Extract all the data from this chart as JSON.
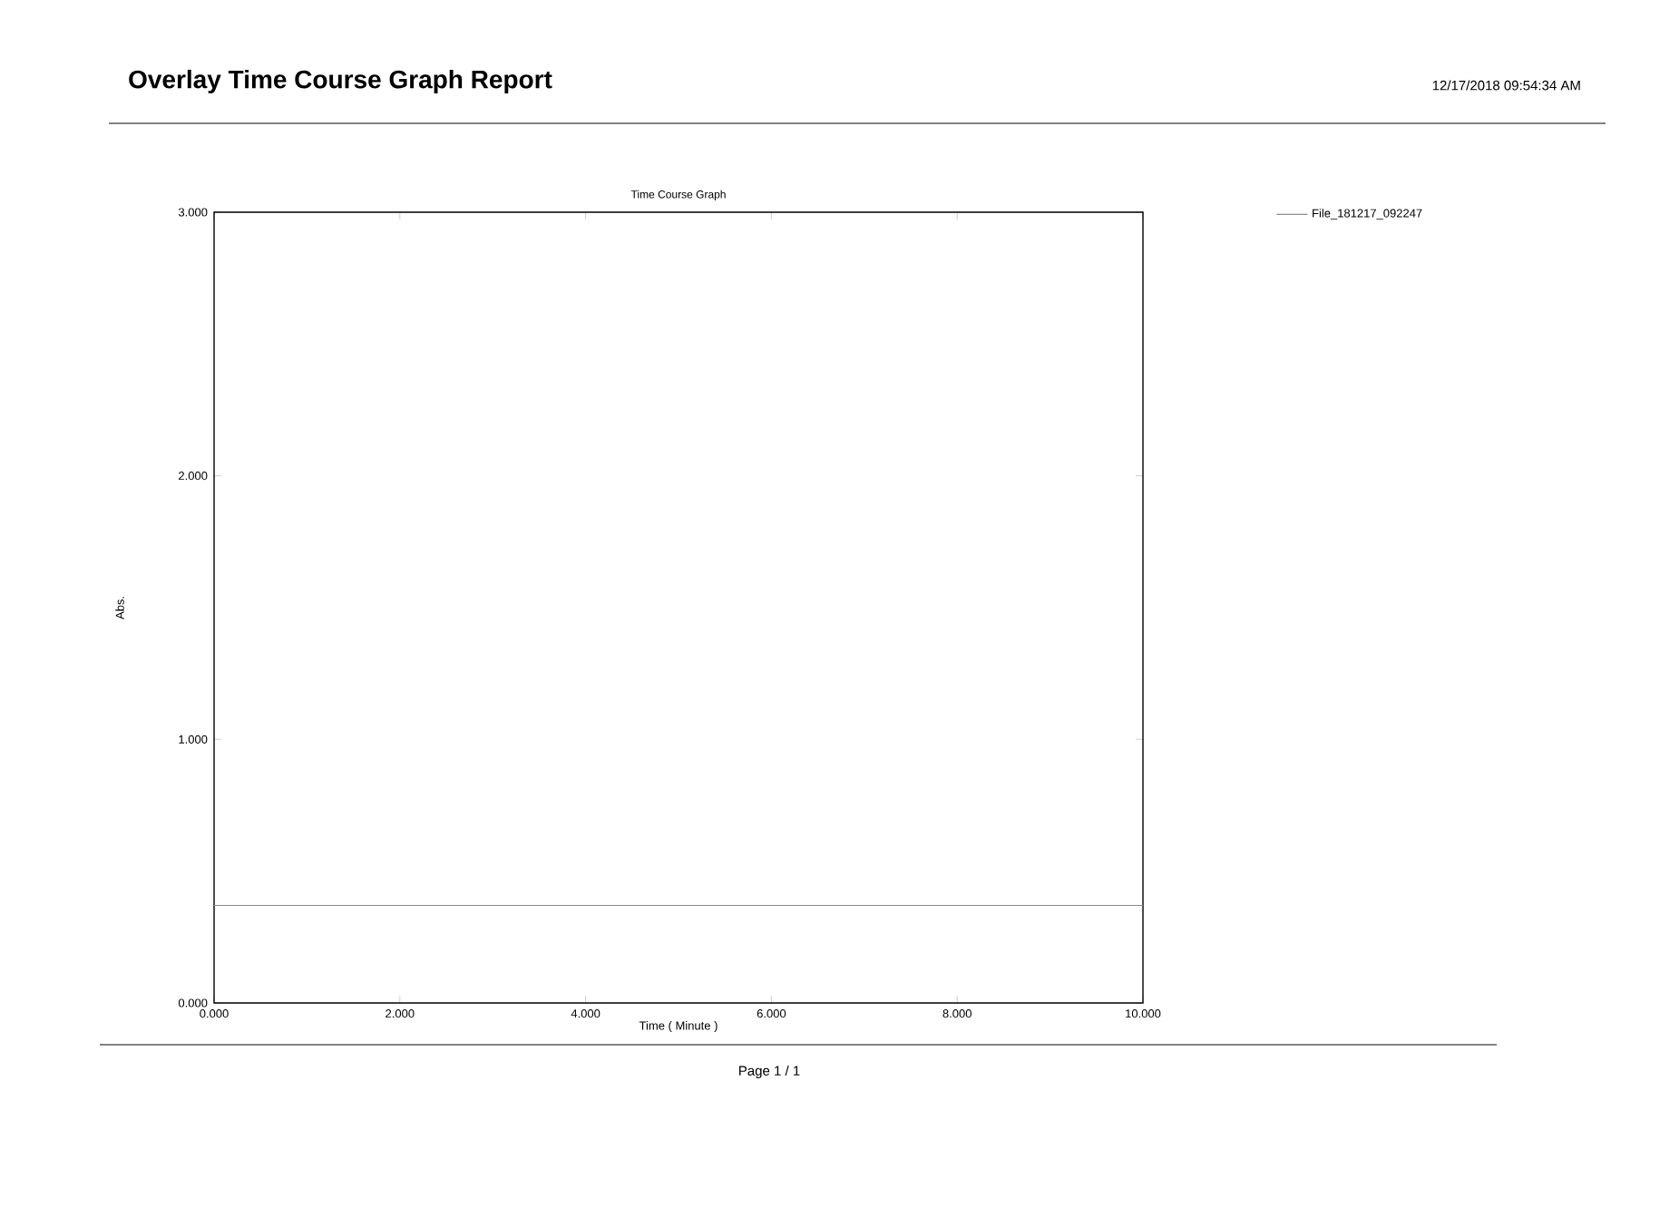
{
  "chart_data": {
    "type": "line",
    "title": "Time Course Graph",
    "xlabel": "Time ( Minute )",
    "ylabel": "Abs.",
    "annotations": [
      "Overlay Time Course Graph Report",
      "12/17/2018 09:54:34 AM",
      "Page 1 / 1"
    ],
    "x": [
      0,
      10
    ],
    "series": [
      {
        "name": "File_181217_092247",
        "color": "#8c8c8c",
        "values": [
          0.37,
          0.37
        ]
      }
    ],
    "xlim": [
      0,
      10
    ],
    "xticks": [
      {
        "value": 0,
        "label": "0.000"
      },
      {
        "value": 2,
        "label": "2.000"
      },
      {
        "value": 4,
        "label": "4.000"
      },
      {
        "value": 6,
        "label": "6.000"
      },
      {
        "value": 8,
        "label": "8.000"
      },
      {
        "value": 10,
        "label": "10.000"
      }
    ],
    "ylim": [
      0,
      3
    ],
    "yticks": [
      {
        "value": 0,
        "label": "0.000"
      },
      {
        "value": 1,
        "label": "1.000"
      },
      {
        "value": 2,
        "label": "2.000"
      },
      {
        "value": 3,
        "label": "3.000"
      }
    ],
    "grid": false,
    "legend": "top right",
    "marker": "none",
    "line_style": "solid"
  }
}
